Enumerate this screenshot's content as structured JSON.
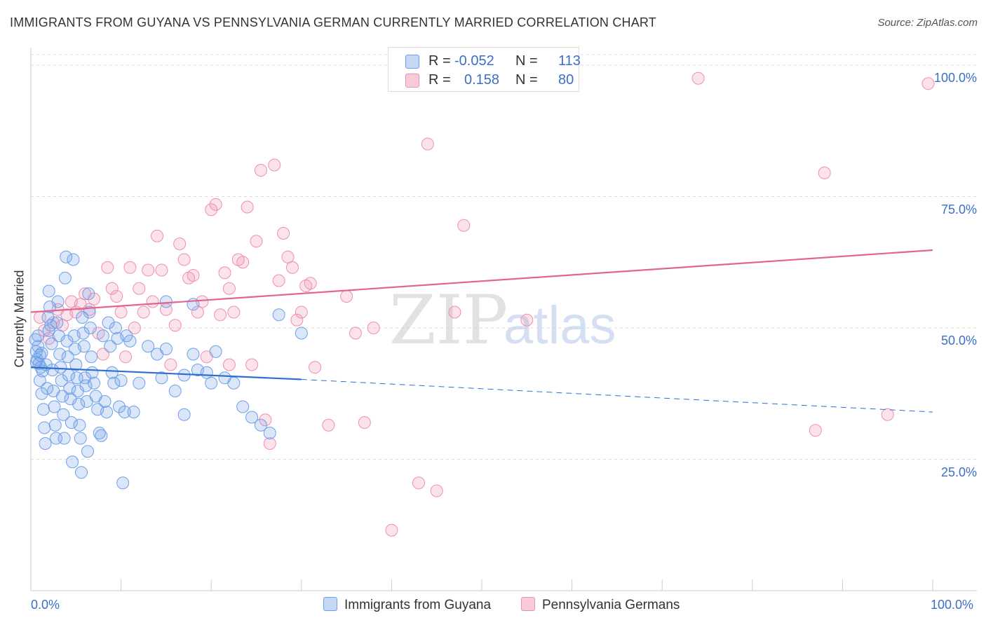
{
  "title": "IMMIGRANTS FROM GUYANA VS PENNSYLVANIA GERMAN CURRENTLY MARRIED CORRELATION CHART",
  "source": "Source: ZipAtlas.com",
  "watermark": {
    "zip": "ZIP",
    "atlas": "atlas"
  },
  "legend_top": {
    "rows": [
      {
        "r_label": "R =",
        "r_value": "-0.052",
        "n_label": "N =",
        "n_value": "113",
        "color": "#6ea0e8"
      },
      {
        "r_label": "R =",
        "r_value": "0.158",
        "n_label": "N =",
        "n_value": "80",
        "color": "#f08fb0"
      }
    ]
  },
  "legend_bottom": [
    {
      "label": "Immigrants from Guyana",
      "color": "#6ea0e8"
    },
    {
      "label": "Pennsylvania Germans",
      "color": "#f08fb0"
    }
  ],
  "axes": {
    "y_title": "Currently Married",
    "x_min_label": "0.0%",
    "x_max_label": "100.0%",
    "y_ticks": [
      "25.0%",
      "50.0%",
      "75.0%",
      "100.0%"
    ]
  },
  "chart_data": {
    "type": "scatter",
    "xlabel": "",
    "ylabel": "Currently Married",
    "xlim": [
      0,
      100
    ],
    "ylim": [
      0,
      102
    ],
    "y_ticks": [
      25,
      50,
      75,
      100
    ],
    "grid": "horizontal dashed",
    "series": [
      {
        "name": "Immigrants from Guyana",
        "color": "#6ea0e8",
        "trend": {
          "x0": 0,
          "y0": 42.5,
          "x1": 30,
          "y1": 40.2,
          "dashed_to_x": 100,
          "dashed_to_y": 34.0
        },
        "points": [
          [
            0.5,
            47.8
          ],
          [
            0.6,
            45.5
          ],
          [
            0.7,
            44.0
          ],
          [
            0.8,
            46.5
          ],
          [
            0.9,
            43.2
          ],
          [
            1.0,
            44.8
          ],
          [
            1.1,
            42.5
          ],
          [
            1.2,
            45.2
          ],
          [
            1.3,
            41.8
          ],
          [
            0.6,
            43.5
          ],
          [
            0.8,
            48.5
          ],
          [
            1.0,
            40.0
          ],
          [
            1.2,
            37.5
          ],
          [
            1.4,
            34.5
          ],
          [
            1.5,
            31.0
          ],
          [
            1.6,
            28.0
          ],
          [
            1.7,
            43.0
          ],
          [
            1.8,
            38.5
          ],
          [
            1.9,
            52.0
          ],
          [
            2.0,
            49.5
          ],
          [
            2.0,
            57.0
          ],
          [
            2.1,
            54.0
          ],
          [
            2.2,
            50.5
          ],
          [
            2.3,
            47.0
          ],
          [
            2.4,
            42.0
          ],
          [
            2.5,
            38.0
          ],
          [
            2.6,
            35.0
          ],
          [
            2.7,
            31.5
          ],
          [
            2.8,
            29.0
          ],
          [
            2.9,
            51.0
          ],
          [
            3.0,
            55.0
          ],
          [
            3.1,
            48.5
          ],
          [
            3.2,
            45.0
          ],
          [
            3.3,
            42.5
          ],
          [
            3.4,
            40.0
          ],
          [
            3.5,
            37.0
          ],
          [
            3.6,
            33.5
          ],
          [
            3.7,
            29.0
          ],
          [
            3.8,
            59.5
          ],
          [
            3.9,
            63.5
          ],
          [
            4.0,
            47.5
          ],
          [
            4.1,
            44.5
          ],
          [
            4.2,
            41.0
          ],
          [
            4.3,
            38.5
          ],
          [
            4.4,
            36.5
          ],
          [
            4.5,
            32.0
          ],
          [
            4.6,
            24.5
          ],
          [
            4.7,
            63.0
          ],
          [
            4.8,
            48.5
          ],
          [
            4.9,
            46.0
          ],
          [
            5.0,
            43.0
          ],
          [
            5.1,
            40.5
          ],
          [
            5.2,
            38.0
          ],
          [
            5.3,
            35.5
          ],
          [
            5.4,
            31.5
          ],
          [
            5.5,
            29.0
          ],
          [
            5.6,
            22.5
          ],
          [
            5.7,
            52.0
          ],
          [
            5.8,
            49.0
          ],
          [
            5.9,
            46.5
          ],
          [
            6.0,
            40.5
          ],
          [
            6.1,
            39.0
          ],
          [
            6.2,
            36.0
          ],
          [
            6.3,
            26.5
          ],
          [
            6.4,
            56.5
          ],
          [
            6.5,
            53.0
          ],
          [
            6.6,
            50.0
          ],
          [
            6.7,
            44.5
          ],
          [
            6.8,
            41.5
          ],
          [
            7.0,
            39.5
          ],
          [
            7.2,
            37.0
          ],
          [
            7.4,
            34.5
          ],
          [
            7.6,
            30.0
          ],
          [
            7.8,
            29.5
          ],
          [
            8.0,
            48.5
          ],
          [
            8.2,
            36.0
          ],
          [
            8.4,
            34.0
          ],
          [
            8.6,
            51.0
          ],
          [
            8.8,
            46.5
          ],
          [
            9.0,
            41.5
          ],
          [
            9.2,
            39.5
          ],
          [
            9.4,
            50.0
          ],
          [
            9.6,
            48.0
          ],
          [
            9.8,
            35.0
          ],
          [
            10.0,
            40.0
          ],
          [
            10.2,
            20.5
          ],
          [
            10.4,
            34.0
          ],
          [
            10.6,
            48.5
          ],
          [
            11.0,
            47.5
          ],
          [
            11.4,
            34.0
          ],
          [
            12.0,
            39.5
          ],
          [
            13.0,
            46.5
          ],
          [
            14.0,
            45.0
          ],
          [
            14.5,
            40.5
          ],
          [
            15.0,
            46.0
          ],
          [
            16.0,
            38.0
          ],
          [
            17.0,
            33.5
          ],
          [
            18.0,
            45.0
          ],
          [
            18.5,
            42.0
          ],
          [
            19.5,
            41.5
          ],
          [
            20.5,
            45.5
          ],
          [
            21.5,
            40.5
          ],
          [
            22.5,
            39.5
          ],
          [
            23.5,
            35.0
          ],
          [
            24.5,
            33.0
          ],
          [
            25.5,
            31.5
          ],
          [
            26.5,
            30.0
          ],
          [
            17.0,
            41.0
          ],
          [
            15.0,
            55.0
          ],
          [
            18.0,
            54.5
          ],
          [
            20.0,
            39.5
          ],
          [
            27.5,
            52.5
          ],
          [
            30.0,
            49.0
          ]
        ]
      },
      {
        "name": "Pennsylvania Germans",
        "color": "#f08fb0",
        "trend": {
          "x0": 0,
          "y0": 53.0,
          "x1": 100,
          "y1": 64.8
        },
        "points": [
          [
            1.0,
            52.0
          ],
          [
            1.5,
            49.5
          ],
          [
            2.0,
            48.0
          ],
          [
            2.5,
            51.0
          ],
          [
            3.0,
            53.5
          ],
          [
            3.5,
            50.5
          ],
          [
            4.0,
            52.5
          ],
          [
            4.5,
            55.0
          ],
          [
            5.0,
            53.0
          ],
          [
            5.5,
            54.5
          ],
          [
            6.0,
            56.5
          ],
          [
            6.5,
            53.5
          ],
          [
            7.0,
            55.5
          ],
          [
            7.5,
            49.0
          ],
          [
            8.0,
            45.0
          ],
          [
            8.5,
            61.5
          ],
          [
            9.0,
            57.5
          ],
          [
            9.5,
            56.0
          ],
          [
            10.0,
            53.0
          ],
          [
            10.5,
            44.5
          ],
          [
            11.0,
            61.5
          ],
          [
            11.5,
            50.0
          ],
          [
            12.0,
            57.5
          ],
          [
            12.5,
            53.0
          ],
          [
            13.0,
            61.0
          ],
          [
            13.5,
            55.0
          ],
          [
            14.0,
            67.5
          ],
          [
            14.5,
            61.0
          ],
          [
            15.0,
            53.5
          ],
          [
            15.5,
            43.0
          ],
          [
            16.0,
            50.5
          ],
          [
            16.5,
            66.0
          ],
          [
            17.0,
            63.0
          ],
          [
            17.5,
            59.5
          ],
          [
            18.0,
            60.0
          ],
          [
            18.5,
            53.0
          ],
          [
            19.0,
            55.0
          ],
          [
            19.5,
            44.5
          ],
          [
            20.0,
            72.5
          ],
          [
            20.5,
            73.5
          ],
          [
            21.0,
            52.5
          ],
          [
            21.5,
            60.5
          ],
          [
            22.0,
            57.5
          ],
          [
            22.5,
            53.0
          ],
          [
            23.0,
            63.0
          ],
          [
            23.5,
            62.5
          ],
          [
            24.0,
            73.0
          ],
          [
            24.5,
            43.0
          ],
          [
            25.0,
            66.5
          ],
          [
            25.5,
            80.0
          ],
          [
            26.0,
            32.5
          ],
          [
            26.5,
            28.0
          ],
          [
            27.0,
            81.0
          ],
          [
            27.5,
            59.0
          ],
          [
            28.0,
            68.0
          ],
          [
            28.5,
            63.5
          ],
          [
            29.0,
            61.5
          ],
          [
            29.5,
            51.5
          ],
          [
            30.0,
            53.0
          ],
          [
            30.5,
            58.0
          ],
          [
            31.0,
            58.5
          ],
          [
            33.0,
            31.5
          ],
          [
            35.0,
            56.0
          ],
          [
            37.0,
            32.0
          ],
          [
            38.0,
            50.0
          ],
          [
            40.0,
            11.5
          ],
          [
            43.0,
            20.5
          ],
          [
            44.0,
            85.0
          ],
          [
            45.0,
            19.0
          ],
          [
            47.0,
            53.0
          ],
          [
            48.0,
            69.5
          ],
          [
            55.0,
            51.5
          ],
          [
            74.0,
            97.5
          ],
          [
            87.0,
            30.5
          ],
          [
            88.0,
            79.5
          ],
          [
            95.0,
            33.5
          ],
          [
            99.5,
            96.5
          ],
          [
            22.0,
            43.0
          ],
          [
            31.5,
            42.5
          ],
          [
            36.0,
            49.0
          ]
        ]
      }
    ]
  }
}
